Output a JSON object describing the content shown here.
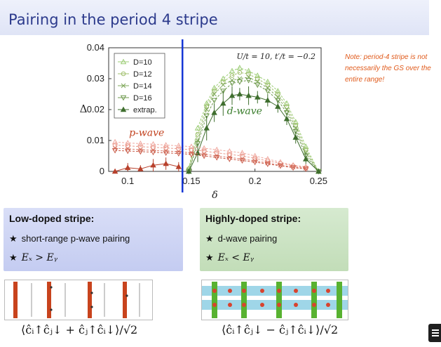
{
  "slide": {
    "title": "Pairing in the period 4 stripe",
    "note": "Note: period-4 stripe is not necessarily the GS over the entire range!"
  },
  "colors": {
    "title_blue": "#2c3a8c",
    "vline_blue": "#1536d6",
    "dwave_green": "#3a7d2c",
    "pwave_red": "#c2421f",
    "note_orange": "#e05a1b"
  },
  "chart_data": {
    "type": "scatter",
    "xlabel": "δ",
    "ylabel": "Δ",
    "xlim": [
      0.085,
      0.252
    ],
    "ylim": [
      0,
      0.04
    ],
    "xticks": [
      "0.1",
      "0.15",
      "0.2",
      "0.25"
    ],
    "xtick_values": [
      0.1,
      0.15,
      0.2,
      0.25
    ],
    "yticks": [
      "0",
      "0.01",
      "0.02",
      "0.03",
      "0.04"
    ],
    "ytick_values": [
      0,
      0.01,
      0.02,
      0.03,
      0.04
    ],
    "params_label": "U/t = 10, t′/t = −0.2",
    "vertical_line_x": 0.143,
    "annotations": [
      {
        "text": "p-wave",
        "color": "#c2421f"
      },
      {
        "text": "d-wave",
        "color": "#3a7d2c"
      }
    ],
    "legend_position": "top-left",
    "series": [
      {
        "name": "D=10",
        "marker": "triangle-up-open",
        "group": "d-wave",
        "x": [
          0.148,
          0.155,
          0.162,
          0.168,
          0.175,
          0.182,
          0.188,
          0.195,
          0.202,
          0.21,
          0.218,
          0.225,
          0.232,
          0.24,
          0.25
        ],
        "y": [
          0.001,
          0.014,
          0.022,
          0.027,
          0.03,
          0.0325,
          0.0335,
          0.0325,
          0.031,
          0.029,
          0.026,
          0.022,
          0.016,
          0.008,
          0.0
        ]
      },
      {
        "name": "D=12",
        "marker": "circle-open",
        "group": "d-wave",
        "x": [
          0.148,
          0.155,
          0.162,
          0.168,
          0.175,
          0.182,
          0.188,
          0.195,
          0.202,
          0.21,
          0.218,
          0.225,
          0.232,
          0.24,
          0.25
        ],
        "y": [
          0.0008,
          0.012,
          0.021,
          0.026,
          0.029,
          0.031,
          0.032,
          0.0315,
          0.03,
          0.028,
          0.025,
          0.021,
          0.015,
          0.007,
          0.0
        ]
      },
      {
        "name": "D=14",
        "marker": "x",
        "group": "d-wave",
        "x": [
          0.148,
          0.155,
          0.162,
          0.168,
          0.175,
          0.182,
          0.188,
          0.195,
          0.202,
          0.21,
          0.218,
          0.225,
          0.232,
          0.24,
          0.25
        ],
        "y": [
          0.0005,
          0.01,
          0.02,
          0.025,
          0.028,
          0.0295,
          0.03,
          0.0305,
          0.029,
          0.027,
          0.024,
          0.02,
          0.014,
          0.006,
          0.0
        ]
      },
      {
        "name": "D=16",
        "marker": "triangle-down-open",
        "group": "d-wave",
        "x": [
          0.148,
          0.155,
          0.162,
          0.168,
          0.175,
          0.182,
          0.188,
          0.195,
          0.202,
          0.21,
          0.218,
          0.225,
          0.232,
          0.24,
          0.25
        ],
        "y": [
          0.0,
          0.009,
          0.018,
          0.023,
          0.026,
          0.0285,
          0.029,
          0.0295,
          0.028,
          0.026,
          0.023,
          0.019,
          0.013,
          0.005,
          0.0
        ]
      },
      {
        "name": "extrap.",
        "marker": "triangle-up-filled-errorbar",
        "group": "d-wave",
        "x": [
          0.148,
          0.155,
          0.162,
          0.168,
          0.175,
          0.182,
          0.188,
          0.195,
          0.202,
          0.21,
          0.218,
          0.225,
          0.232,
          0.24,
          0.25
        ],
        "y": [
          0.0,
          0.006,
          0.014,
          0.019,
          0.022,
          0.0245,
          0.025,
          0.0245,
          0.024,
          0.023,
          0.021,
          0.017,
          0.011,
          0.004,
          0.0
        ],
        "yerr": [
          0.0,
          0.003,
          0.004,
          0.003,
          0.004,
          0.003,
          0.002,
          0.003,
          0.002,
          0.002,
          0.002,
          0.002,
          0.002,
          0.002,
          0.0
        ]
      },
      {
        "name": "p-wave D=10",
        "marker": "triangle-up-open",
        "group": "p-wave",
        "x": [
          0.09,
          0.1,
          0.11,
          0.12,
          0.13,
          0.14,
          0.15,
          0.16,
          0.17,
          0.18,
          0.19,
          0.2,
          0.21,
          0.22,
          0.23,
          0.24
        ],
        "y": [
          0.0095,
          0.0092,
          0.009,
          0.0088,
          0.0085,
          0.0083,
          0.008,
          0.0075,
          0.007,
          0.0065,
          0.006,
          0.005,
          0.004,
          0.003,
          0.002,
          0.0015
        ]
      },
      {
        "name": "p-wave D=12",
        "marker": "circle-open",
        "group": "p-wave",
        "x": [
          0.09,
          0.1,
          0.11,
          0.12,
          0.13,
          0.14,
          0.15,
          0.16,
          0.17,
          0.18,
          0.19,
          0.2,
          0.21,
          0.22,
          0.23,
          0.24
        ],
        "y": [
          0.0085,
          0.0083,
          0.008,
          0.0078,
          0.0076,
          0.0073,
          0.007,
          0.0066,
          0.006,
          0.0055,
          0.005,
          0.0042,
          0.0034,
          0.0026,
          0.0018,
          0.0012
        ]
      },
      {
        "name": "p-wave D=14",
        "marker": "x",
        "group": "p-wave",
        "x": [
          0.09,
          0.1,
          0.11,
          0.12,
          0.13,
          0.14,
          0.15,
          0.16,
          0.17,
          0.18,
          0.19,
          0.2,
          0.21,
          0.22,
          0.23,
          0.24
        ],
        "y": [
          0.0075,
          0.0073,
          0.007,
          0.0068,
          0.0066,
          0.0064,
          0.006,
          0.0056,
          0.005,
          0.0045,
          0.004,
          0.0034,
          0.0027,
          0.002,
          0.0014,
          0.001
        ]
      },
      {
        "name": "p-wave D=16",
        "marker": "triangle-down-open",
        "group": "p-wave",
        "x": [
          0.09,
          0.1,
          0.11,
          0.12,
          0.13,
          0.14,
          0.15,
          0.16,
          0.17,
          0.18,
          0.19,
          0.2,
          0.21,
          0.22,
          0.23,
          0.24
        ],
        "y": [
          0.0068,
          0.0066,
          0.0064,
          0.0062,
          0.006,
          0.0058,
          0.0055,
          0.005,
          0.0045,
          0.004,
          0.0035,
          0.003,
          0.0024,
          0.0018,
          0.0012,
          0.0008
        ]
      },
      {
        "name": "p-wave extrap.",
        "marker": "triangle-up-filled-errorbar",
        "group": "p-wave",
        "x": [
          0.09,
          0.1,
          0.11,
          0.12,
          0.13,
          0.14
        ],
        "y": [
          0.0,
          0.0012,
          0.0008,
          0.002,
          0.0025,
          0.0015
        ],
        "yerr": [
          0.0005,
          0.0015,
          0.0012,
          0.002,
          0.002,
          0.0015
        ]
      }
    ]
  },
  "boxes": {
    "low": {
      "heading": "Low-doped stripe:",
      "item1": "short-range p-wave pairing",
      "item2": "Eₓ > Eᵧ",
      "star": "★"
    },
    "high": {
      "heading": "Highly-doped stripe:",
      "item1": "d-wave pairing",
      "item2": "Eₓ < Eᵧ",
      "star": "★"
    }
  },
  "formulas": {
    "low": "⟨ĉᵢ↑ĉⱼ↓ + ĉⱼ↑ĉᵢ↓⟩/√2",
    "high": "⟨ĉᵢ↑ĉⱼ↓ − ĉⱼ↑ĉᵢ↓⟩/√2"
  }
}
